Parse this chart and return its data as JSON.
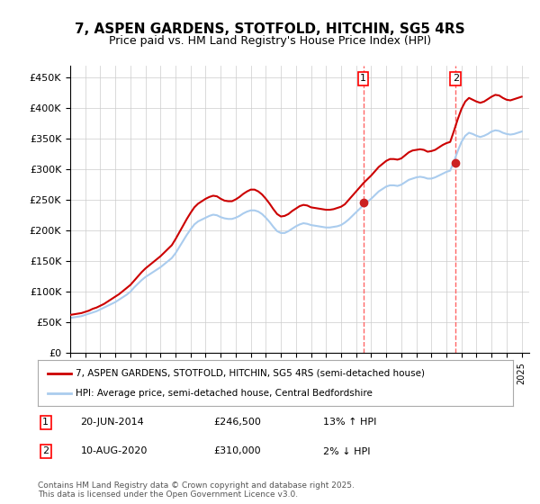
{
  "title": "7, ASPEN GARDENS, STOTFOLD, HITCHIN, SG5 4RS",
  "subtitle": "Price paid vs. HM Land Registry's House Price Index (HPI)",
  "ylim": [
    0,
    470000
  ],
  "yticks": [
    0,
    50000,
    100000,
    150000,
    200000,
    250000,
    300000,
    350000,
    400000,
    450000
  ],
  "ytick_labels": [
    "£0",
    "£50K",
    "£100K",
    "£150K",
    "£200K",
    "£250K",
    "£300K",
    "£350K",
    "£400K",
    "£450K"
  ],
  "background_color": "#ffffff",
  "grid_color": "#cccccc",
  "legend_label_red": "7, ASPEN GARDENS, STOTFOLD, HITCHIN, SG5 4RS (semi-detached house)",
  "legend_label_blue": "HPI: Average price, semi-detached house, Central Bedfordshire",
  "marker1_date": 2014.47,
  "marker1_value": 246500,
  "marker1_label": "1",
  "marker1_text": "20-JUN-2014",
  "marker1_price": "£246,500",
  "marker1_hpi": "13% ↑ HPI",
  "marker2_date": 2020.61,
  "marker2_value": 310000,
  "marker2_label": "2",
  "marker2_text": "10-AUG-2020",
  "marker2_price": "£310,000",
  "marker2_hpi": "2% ↓ HPI",
  "footer": "Contains HM Land Registry data © Crown copyright and database right 2025.\nThis data is licensed under the Open Government Licence v3.0.",
  "red_color": "#cc0000",
  "blue_color": "#aaccee",
  "marker_color": "#cc2222",
  "dashed_color": "#ff6666",
  "hpi_years": [
    1995.0,
    1995.25,
    1995.5,
    1995.75,
    1996.0,
    1996.25,
    1996.5,
    1996.75,
    1997.0,
    1997.25,
    1997.5,
    1997.75,
    1998.0,
    1998.25,
    1998.5,
    1998.75,
    1999.0,
    1999.25,
    1999.5,
    1999.75,
    2000.0,
    2000.25,
    2000.5,
    2000.75,
    2001.0,
    2001.25,
    2001.5,
    2001.75,
    2002.0,
    2002.25,
    2002.5,
    2002.75,
    2003.0,
    2003.25,
    2003.5,
    2003.75,
    2004.0,
    2004.25,
    2004.5,
    2004.75,
    2005.0,
    2005.25,
    2005.5,
    2005.75,
    2006.0,
    2006.25,
    2006.5,
    2006.75,
    2007.0,
    2007.25,
    2007.5,
    2007.75,
    2008.0,
    2008.25,
    2008.5,
    2008.75,
    2009.0,
    2009.25,
    2009.5,
    2009.75,
    2010.0,
    2010.25,
    2010.5,
    2010.75,
    2011.0,
    2011.25,
    2011.5,
    2011.75,
    2012.0,
    2012.25,
    2012.5,
    2012.75,
    2013.0,
    2013.25,
    2013.5,
    2013.75,
    2014.0,
    2014.25,
    2014.5,
    2014.75,
    2015.0,
    2015.25,
    2015.5,
    2015.75,
    2016.0,
    2016.25,
    2016.5,
    2016.75,
    2017.0,
    2017.25,
    2017.5,
    2017.75,
    2018.0,
    2018.25,
    2018.5,
    2018.75,
    2019.0,
    2019.25,
    2019.5,
    2019.75,
    2020.0,
    2020.25,
    2020.5,
    2020.75,
    2021.0,
    2021.25,
    2021.5,
    2021.75,
    2022.0,
    2022.25,
    2022.5,
    2022.75,
    2023.0,
    2023.25,
    2023.5,
    2023.75,
    2024.0,
    2024.25,
    2024.5,
    2024.75,
    2025.0
  ],
  "hpi_values": [
    57000,
    58000,
    59000,
    60000,
    62000,
    64000,
    66000,
    68000,
    71000,
    74000,
    77000,
    80000,
    83000,
    87000,
    91000,
    95000,
    100000,
    107000,
    113000,
    119000,
    124000,
    128000,
    132000,
    136000,
    140000,
    145000,
    150000,
    155000,
    163000,
    173000,
    183000,
    193000,
    202000,
    210000,
    215000,
    218000,
    221000,
    224000,
    226000,
    225000,
    222000,
    220000,
    219000,
    219000,
    221000,
    224000,
    228000,
    231000,
    233000,
    233000,
    231000,
    227000,
    221000,
    214000,
    206000,
    199000,
    196000,
    196000,
    199000,
    203000,
    207000,
    210000,
    212000,
    211000,
    209000,
    208000,
    207000,
    206000,
    205000,
    205000,
    206000,
    207000,
    209000,
    213000,
    218000,
    224000,
    230000,
    236000,
    242000,
    247000,
    252000,
    258000,
    264000,
    268000,
    272000,
    274000,
    274000,
    273000,
    275000,
    279000,
    283000,
    285000,
    287000,
    288000,
    287000,
    285000,
    285000,
    287000,
    290000,
    293000,
    296000,
    298000,
    313000,
    330000,
    345000,
    355000,
    360000,
    358000,
    355000,
    353000,
    355000,
    358000,
    362000,
    364000,
    363000,
    360000,
    358000,
    357000,
    358000,
    360000,
    362000
  ],
  "red_years": [
    1995.0,
    1995.25,
    1995.5,
    1995.75,
    1996.0,
    1996.25,
    1996.5,
    1996.75,
    1997.0,
    1997.25,
    1997.5,
    1997.75,
    1998.0,
    1998.25,
    1998.5,
    1998.75,
    1999.0,
    1999.25,
    1999.5,
    1999.75,
    2000.0,
    2000.25,
    2000.5,
    2000.75,
    2001.0,
    2001.25,
    2001.5,
    2001.75,
    2002.0,
    2002.25,
    2002.5,
    2002.75,
    2003.0,
    2003.25,
    2003.5,
    2003.75,
    2004.0,
    2004.25,
    2004.5,
    2004.75,
    2005.0,
    2005.25,
    2005.5,
    2005.75,
    2006.0,
    2006.25,
    2006.5,
    2006.75,
    2007.0,
    2007.25,
    2007.5,
    2007.75,
    2008.0,
    2008.25,
    2008.5,
    2008.75,
    2009.0,
    2009.25,
    2009.5,
    2009.75,
    2010.0,
    2010.25,
    2010.5,
    2010.75,
    2011.0,
    2011.25,
    2011.5,
    2011.75,
    2012.0,
    2012.25,
    2012.5,
    2012.75,
    2013.0,
    2013.25,
    2013.5,
    2013.75,
    2014.0,
    2014.25,
    2014.5,
    2014.75,
    2015.0,
    2015.25,
    2015.5,
    2015.75,
    2016.0,
    2016.25,
    2016.5,
    2016.75,
    2017.0,
    2017.25,
    2017.5,
    2017.75,
    2018.0,
    2018.25,
    2018.5,
    2018.75,
    2019.0,
    2019.25,
    2019.5,
    2019.75,
    2020.0,
    2020.25,
    2020.5,
    2020.75,
    2021.0,
    2021.25,
    2021.5,
    2021.75,
    2022.0,
    2022.25,
    2022.5,
    2022.75,
    2023.0,
    2023.25,
    2023.5,
    2023.75,
    2024.0,
    2024.25,
    2024.5,
    2024.75,
    2025.0
  ],
  "red_values": [
    62000,
    63000,
    64000,
    65000,
    67000,
    69000,
    72000,
    74000,
    77000,
    80000,
    84000,
    88000,
    92000,
    96000,
    101000,
    106000,
    111000,
    118000,
    125000,
    132000,
    138000,
    143000,
    148000,
    153000,
    158000,
    164000,
    170000,
    176000,
    186000,
    197000,
    208000,
    219000,
    229000,
    238000,
    244000,
    248000,
    252000,
    255000,
    257000,
    256000,
    252000,
    249000,
    248000,
    248000,
    251000,
    255000,
    260000,
    264000,
    267000,
    267000,
    264000,
    259000,
    252000,
    244000,
    235000,
    227000,
    223000,
    224000,
    227000,
    232000,
    236000,
    240000,
    242000,
    241000,
    238000,
    237000,
    236000,
    235000,
    234000,
    234000,
    235000,
    237000,
    239000,
    243000,
    250000,
    257000,
    264000,
    271000,
    278000,
    284000,
    290000,
    297000,
    304000,
    309000,
    314000,
    317000,
    317000,
    316000,
    318000,
    323000,
    328000,
    331000,
    332000,
    333000,
    332000,
    329000,
    330000,
    332000,
    336000,
    340000,
    343000,
    345000,
    363000,
    382000,
    399000,
    411000,
    417000,
    414000,
    411000,
    409000,
    411000,
    415000,
    419000,
    422000,
    421000,
    417000,
    414000,
    413000,
    415000,
    417000,
    419000
  ]
}
